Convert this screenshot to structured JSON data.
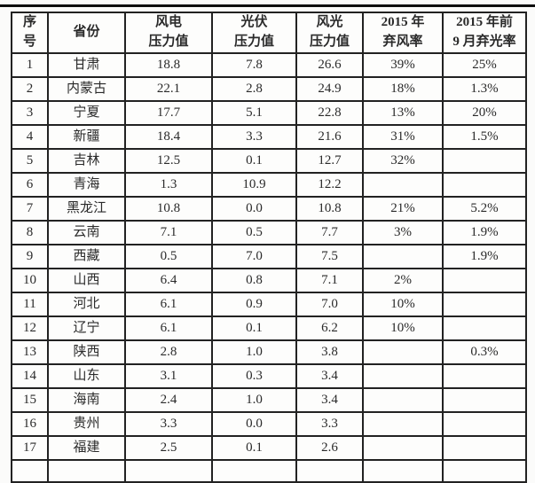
{
  "colors": {
    "bg": "#fbfbfa",
    "border": "#222222",
    "text": "#2a2a2a",
    "rule": "#0e0e0e",
    "cell": "#fdfdfc"
  },
  "table": {
    "headers": [
      "序\n号",
      "省份",
      "风电\n压力值",
      "光伏\n压力值",
      "风光\n压力值",
      "2015 年\n弃风率",
      "2015 年前\n9 月弃光率"
    ],
    "rows": [
      [
        "1",
        "甘肃",
        "18.8",
        "7.8",
        "26.6",
        "39%",
        "25%"
      ],
      [
        "2",
        "内蒙古",
        "22.1",
        "2.8",
        "24.9",
        "18%",
        "1.3%"
      ],
      [
        "3",
        "宁夏",
        "17.7",
        "5.1",
        "22.8",
        "13%",
        "20%"
      ],
      [
        "4",
        "新疆",
        "18.4",
        "3.3",
        "21.6",
        "31%",
        "1.5%"
      ],
      [
        "5",
        "吉林",
        "12.5",
        "0.1",
        "12.7",
        "32%",
        ""
      ],
      [
        "6",
        "青海",
        "1.3",
        "10.9",
        "12.2",
        "",
        ""
      ],
      [
        "7",
        "黑龙江",
        "10.8",
        "0.0",
        "10.8",
        "21%",
        "5.2%"
      ],
      [
        "8",
        "云南",
        "7.1",
        "0.5",
        "7.7",
        "3%",
        "1.9%"
      ],
      [
        "9",
        "西藏",
        "0.5",
        "7.0",
        "7.5",
        "",
        "1.9%"
      ],
      [
        "10",
        "山西",
        "6.4",
        "0.8",
        "7.1",
        "2%",
        ""
      ],
      [
        "11",
        "河北",
        "6.1",
        "0.9",
        "7.0",
        "10%",
        ""
      ],
      [
        "12",
        "辽宁",
        "6.1",
        "0.1",
        "6.2",
        "10%",
        ""
      ],
      [
        "13",
        "陕西",
        "2.8",
        "1.0",
        "3.8",
        "",
        "0.3%"
      ],
      [
        "14",
        "山东",
        "3.1",
        "0.3",
        "3.4",
        "",
        ""
      ],
      [
        "15",
        "海南",
        "2.4",
        "1.0",
        "3.4",
        "",
        ""
      ],
      [
        "16",
        "贵州",
        "3.3",
        "0.0",
        "3.3",
        "",
        ""
      ],
      [
        "17",
        "福建",
        "2.5",
        "0.1",
        "2.6",
        "",
        ""
      ]
    ]
  }
}
